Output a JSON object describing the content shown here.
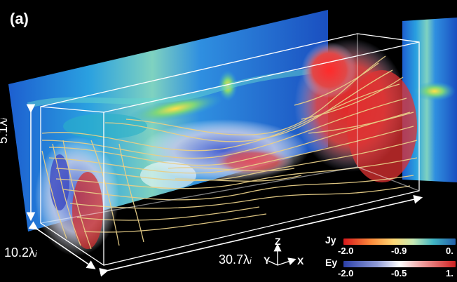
{
  "panel": {
    "label": "(a)"
  },
  "dimensions": {
    "height": {
      "value": "5.1",
      "unit": "λ",
      "sub": "i"
    },
    "depth": {
      "value": "10.2",
      "unit": "λ",
      "sub": "i"
    },
    "length": {
      "value": "30.7",
      "unit": "λ",
      "sub": "i"
    }
  },
  "axes": {
    "x": "X",
    "y": "Y",
    "z": "Z"
  },
  "colorbars": {
    "jy": {
      "title": "Jy",
      "ticks": [
        "-2.0",
        "-0.9",
        "0."
      ]
    },
    "ey": {
      "title": "Ey",
      "ticks": [
        "-2.0",
        "-0.5",
        "1."
      ]
    }
  }
}
